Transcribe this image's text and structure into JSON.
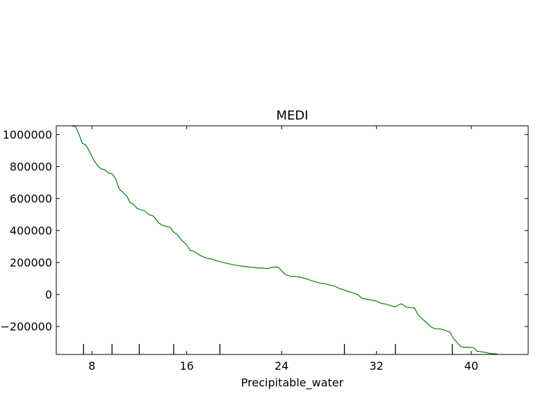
{
  "chart_data": {
    "type": "line",
    "title": "MEDI",
    "xlabel": "Precipitable_water",
    "ylabel": "",
    "xlim": [
      5.0,
      44.8
    ],
    "ylim": [
      -375000,
      1055000
    ],
    "xticks": [
      8,
      16,
      24,
      32,
      40
    ],
    "xtick_labels": [
      "8",
      "16",
      "24",
      "32",
      "40"
    ],
    "yticks": [
      -200000,
      0,
      200000,
      400000,
      600000,
      800000,
      1000000
    ],
    "ytick_labels": [
      "−200000",
      "0",
      "200000",
      "400000",
      "600000",
      "800000",
      "1000000"
    ],
    "rug": [
      7.3,
      9.7,
      12.0,
      14.9,
      18.8,
      29.3,
      33.6,
      38.4
    ],
    "series": [
      {
        "color": "#008000",
        "x": [
          6.3,
          6.6,
          6.9,
          7.2,
          7.5,
          7.9,
          8.2,
          8.5,
          8.8,
          9.1,
          9.4,
          9.7,
          10.0,
          10.3,
          10.6,
          11.0,
          11.2,
          11.5,
          11.8,
          12.1,
          12.4,
          12.8,
          13.2,
          13.6,
          13.9,
          14.3,
          14.6,
          14.9,
          15.2,
          15.5,
          16.0,
          16.3,
          16.6,
          16.9,
          17.2,
          17.5,
          17.8,
          18.1,
          18.4,
          18.8,
          19.2,
          19.6,
          20.0,
          20.4,
          20.8,
          21.2,
          21.6,
          22.0,
          22.4,
          22.8,
          23.2,
          23.6,
          23.8,
          24.1,
          24.4,
          24.8,
          25.2,
          25.6,
          26.0,
          26.4,
          26.8,
          27.2,
          27.6,
          28.0,
          28.4,
          28.8,
          29.2,
          29.6,
          30.0,
          30.4,
          30.8,
          31.2,
          31.6,
          32.0,
          32.4,
          32.8,
          33.2,
          33.6,
          33.8,
          34.1,
          34.5,
          34.9,
          35.2,
          35.5,
          35.8,
          36.1,
          36.4,
          36.7,
          37.0,
          37.4,
          37.8,
          38.2,
          38.5,
          38.8,
          39.1,
          39.4,
          39.8,
          40.2,
          40.5,
          40.8,
          41.2,
          41.5,
          41.8,
          42.2
        ],
        "y": [
          1055000,
          1050000,
          1005000,
          945000,
          935000,
          880000,
          835000,
          805000,
          785000,
          780000,
          760000,
          755000,
          725000,
          660000,
          640000,
          610000,
          575000,
          565000,
          540000,
          530000,
          525000,
          500000,
          490000,
          450000,
          435000,
          425000,
          420000,
          390000,
          375000,
          345000,
          310000,
          275000,
          270000,
          255000,
          242000,
          232000,
          226000,
          222000,
          215000,
          205000,
          198000,
          191000,
          185000,
          180000,
          176000,
          172000,
          169000,
          166000,
          165000,
          162000,
          170000,
          172000,
          166000,
          140000,
          122000,
          113000,
          112000,
          108000,
          100000,
          90000,
          80000,
          72000,
          68000,
          60000,
          55000,
          40000,
          30000,
          20000,
          10000,
          0,
          -25000,
          -30000,
          -35000,
          -42000,
          -55000,
          -60000,
          -70000,
          -78000,
          -68000,
          -58000,
          -78000,
          -82000,
          -83000,
          -125000,
          -148000,
          -168000,
          -190000,
          -207000,
          -215000,
          -215000,
          -225000,
          -235000,
          -275000,
          -300000,
          -325000,
          -330000,
          -330000,
          -333000,
          -355000,
          -358000,
          -362000,
          -368000,
          -370000,
          -372000
        ]
      }
    ]
  }
}
